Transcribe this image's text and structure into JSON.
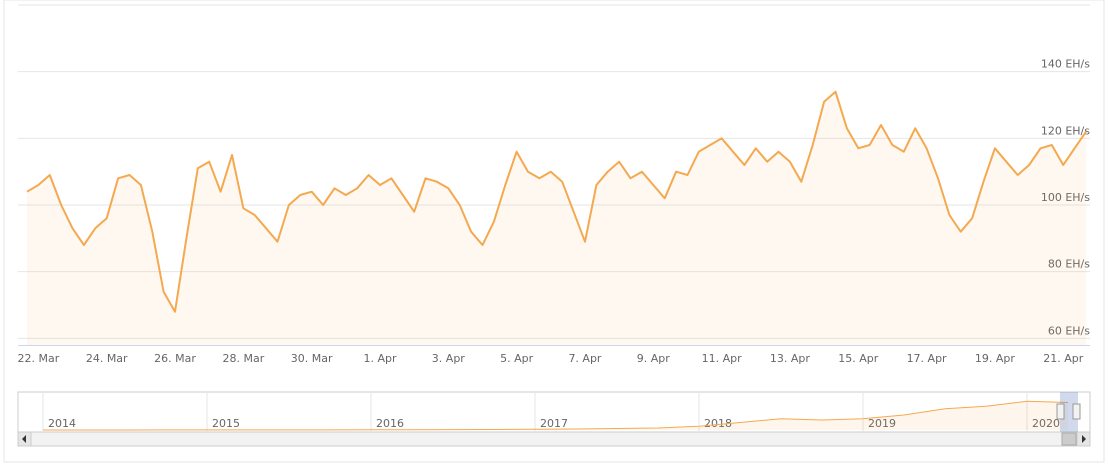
{
  "chart_data": {
    "type": "line",
    "categories": [
      null,
      "22. Mar",
      null,
      null,
      null,
      null,
      null,
      "24. Mar",
      null,
      null,
      null,
      null,
      null,
      "26. Mar",
      null,
      null,
      null,
      null,
      null,
      "28. Mar",
      null,
      null,
      null,
      null,
      null,
      "30. Mar",
      null,
      null,
      null,
      null,
      null,
      "1. Apr",
      null,
      null,
      null,
      null,
      null,
      "3. Apr",
      null,
      null,
      null,
      null,
      null,
      "5. Apr",
      null,
      null,
      null,
      null,
      null,
      "7. Apr",
      null,
      null,
      null,
      null,
      null,
      "9. Apr",
      null,
      null,
      null,
      null,
      null,
      "11. Apr",
      null,
      null,
      null,
      null,
      null,
      "13. Apr",
      null,
      null,
      null,
      null,
      null,
      "15. Apr",
      null,
      null,
      null,
      null,
      null,
      "17. Apr",
      null,
      null,
      null,
      null,
      null,
      "19. Apr",
      null,
      null,
      null,
      null,
      null,
      "21. Apr",
      null,
      null
    ],
    "series": [
      {
        "color": "#f4a950",
        "values": [
          104,
          106,
          109,
          100,
          93,
          88,
          93,
          96,
          108,
          109,
          106,
          92,
          74,
          68,
          90,
          111,
          113,
          104,
          115,
          99,
          97,
          93,
          89,
          100,
          103,
          104,
          100,
          105,
          103,
          105,
          109,
          106,
          108,
          103,
          98,
          108,
          107,
          105,
          100,
          92,
          88,
          95,
          106,
          116,
          110,
          108,
          110,
          107,
          98,
          89,
          106,
          110,
          113,
          108,
          110,
          106,
          102,
          110,
          109,
          116,
          118,
          120,
          116,
          112,
          117,
          113,
          116,
          113,
          107,
          118,
          131,
          134,
          123,
          117,
          118,
          124,
          118,
          116,
          123,
          117,
          108,
          97,
          92,
          96,
          107,
          117,
          113,
          109,
          112,
          117,
          118,
          112,
          117,
          122
        ]
      }
    ],
    "ylim": [
      58,
      160
    ],
    "yticks": [
      {
        "value": 60,
        "label": "60 EH/s"
      },
      {
        "value": 80,
        "label": "80 EH/s"
      },
      {
        "value": 100,
        "label": "100 EH/s"
      },
      {
        "value": 120,
        "label": "120 EH/s"
      },
      {
        "value": 140,
        "label": "140 EH/s"
      }
    ],
    "grid": true,
    "navigator": {
      "categories": [
        "2014",
        null,
        null,
        null,
        "2015",
        null,
        null,
        null,
        "2016",
        null,
        null,
        null,
        "2017",
        null,
        null,
        null,
        "2018",
        null,
        null,
        null,
        "2019",
        null,
        null,
        null,
        "2020",
        null
      ],
      "values": [
        0.01,
        0.03,
        0.1,
        0.2,
        0.3,
        0.35,
        0.4,
        0.5,
        0.8,
        1.2,
        1.5,
        2,
        3,
        4,
        6,
        8,
        15,
        30,
        45,
        40,
        45,
        60,
        85,
        95,
        115,
        110
      ],
      "ylim": [
        0,
        140
      ]
    }
  }
}
